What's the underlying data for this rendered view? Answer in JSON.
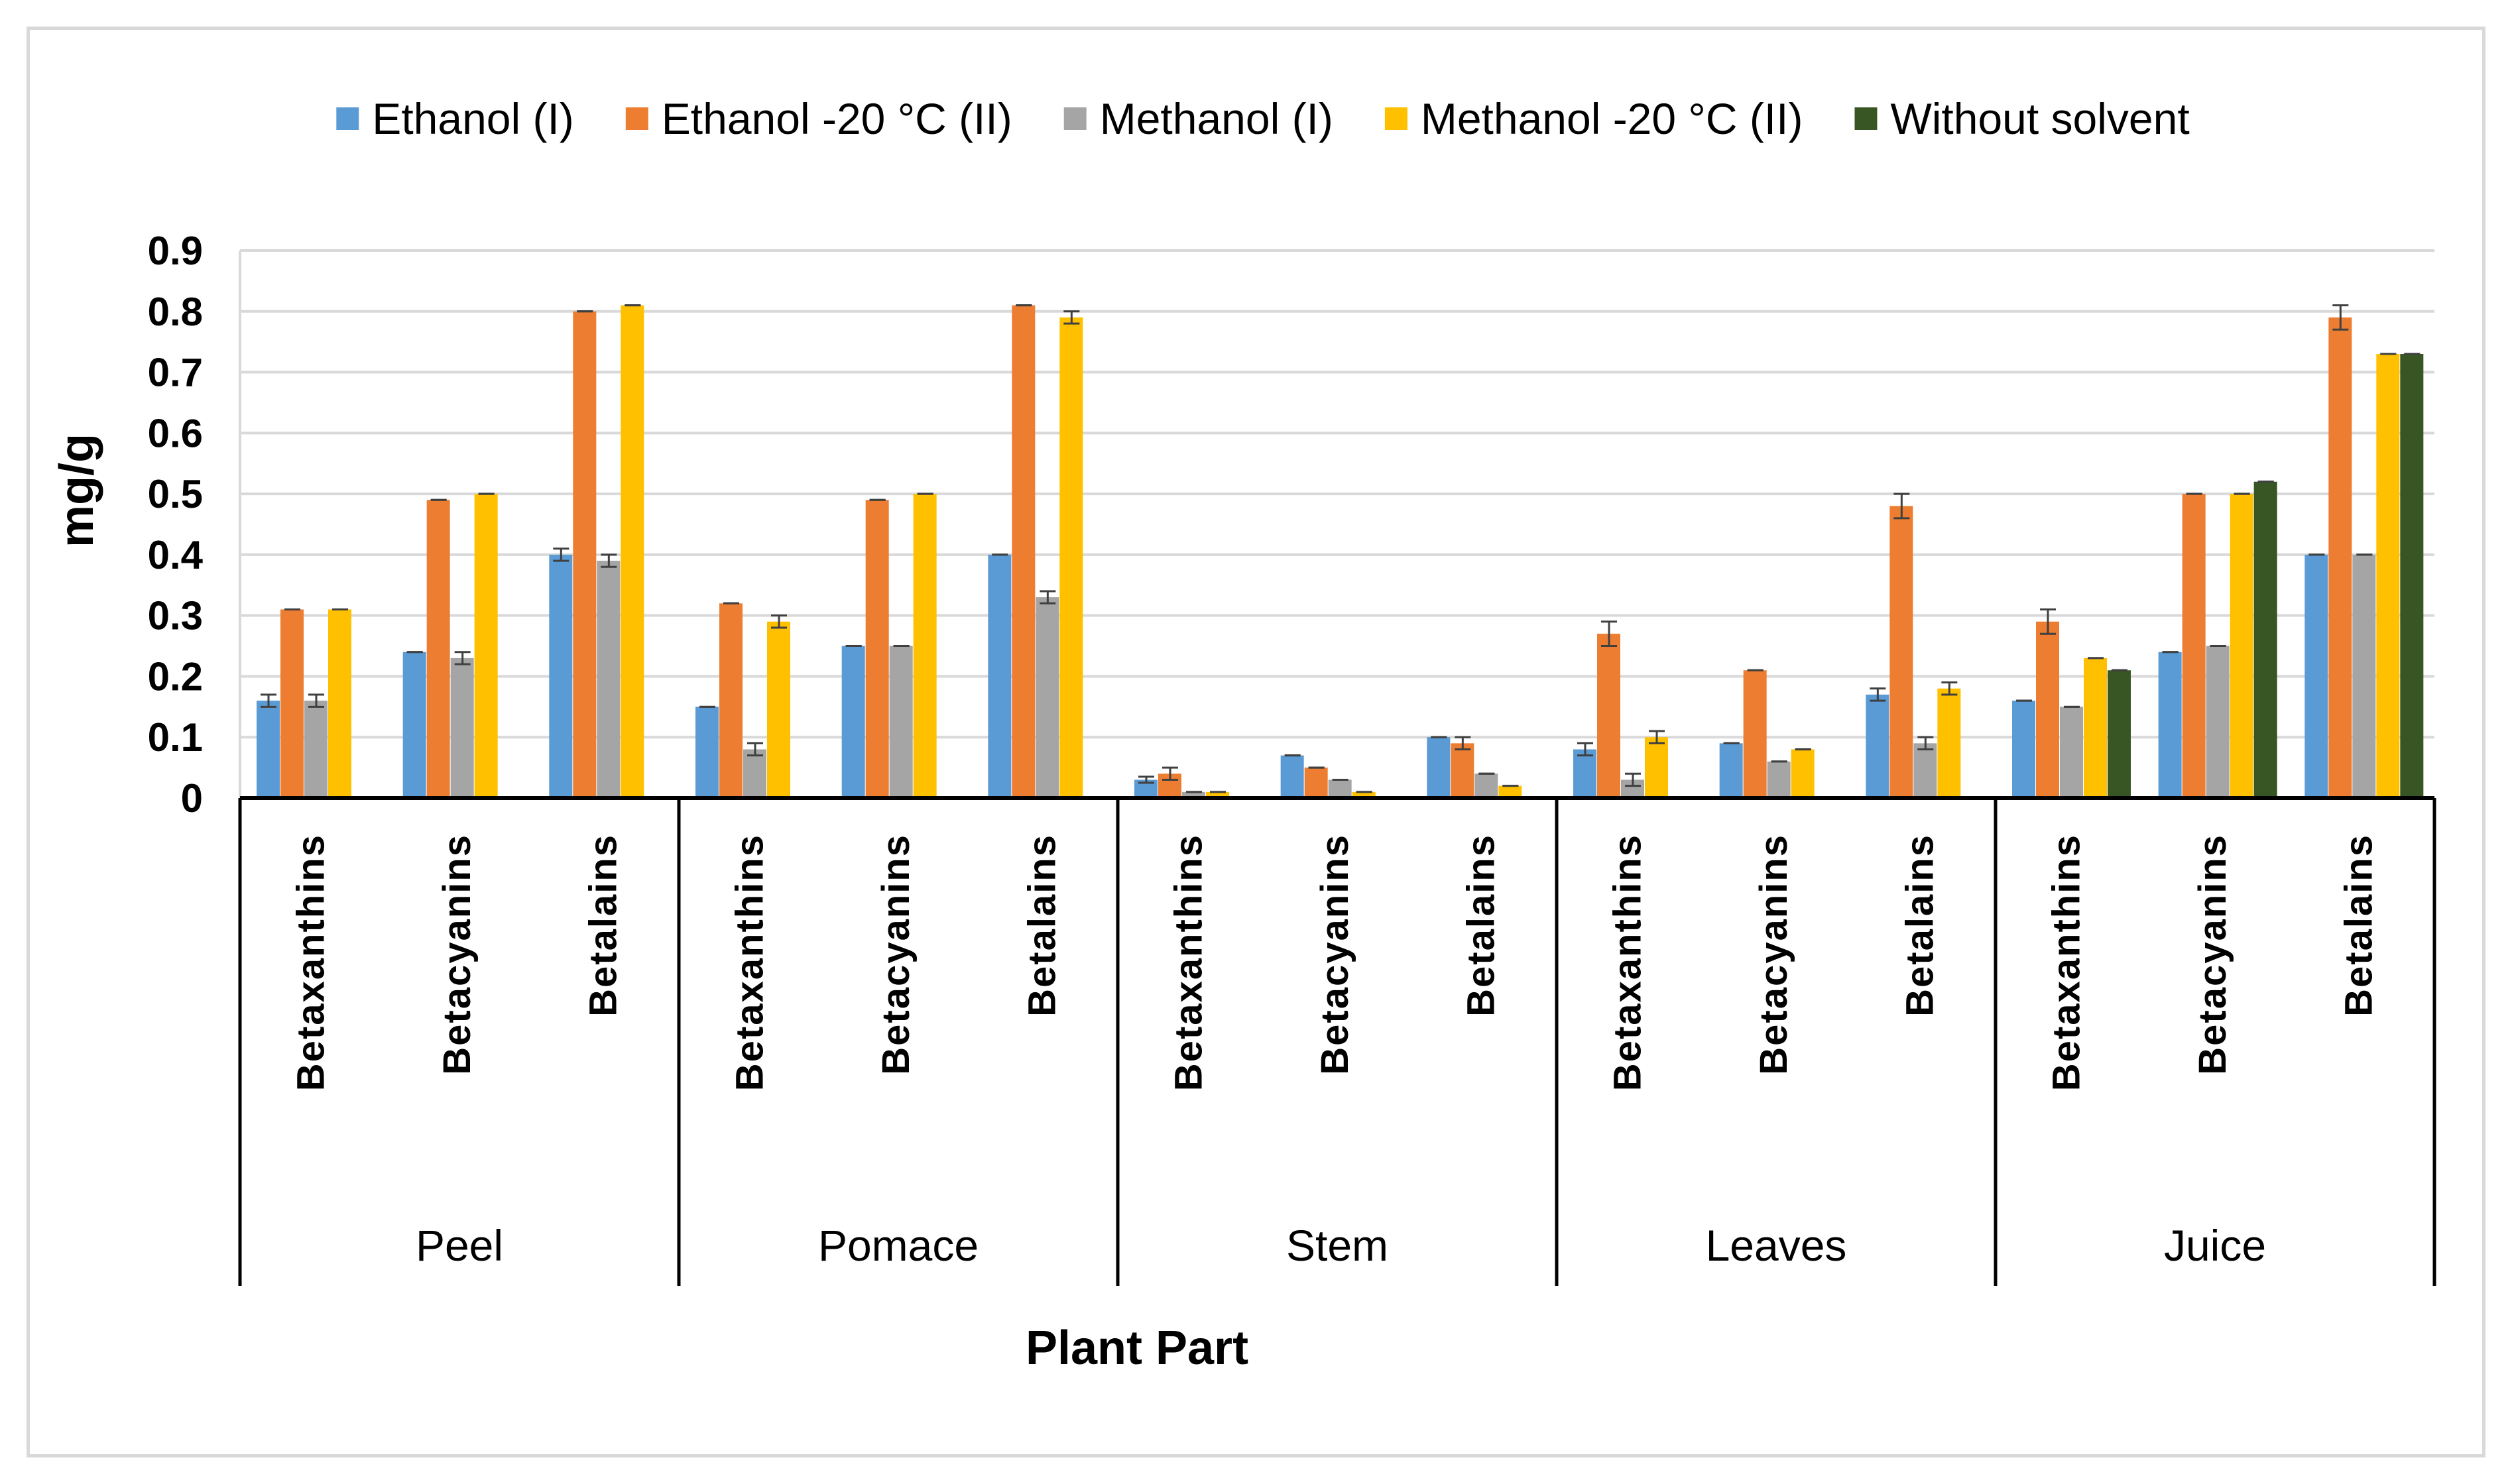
{
  "chart_data": {
    "type": "bar",
    "title": "",
    "xlabel": "Plant Part",
    "ylabel": "mg/g",
    "ylim": [
      0,
      0.9
    ],
    "yticks": [
      "0",
      "0.1",
      "0.2",
      "0.3",
      "0.4",
      "0.5",
      "0.6",
      "0.7",
      "0.8",
      "0.9"
    ],
    "grid": true,
    "legend_position": "top",
    "groups": [
      "Peel",
      "Pomace",
      "Stem",
      "Leaves",
      "Juice"
    ],
    "subcategories": [
      "Betaxanthins",
      "Betacyanins",
      "Betalains"
    ],
    "series": [
      {
        "name": "Ethanol (I)",
        "color": "#5b9bd5",
        "values": [
          0.16,
          0.24,
          0.4,
          0.15,
          0.25,
          0.4,
          0.03,
          0.07,
          0.1,
          0.08,
          0.09,
          0.17,
          0.16,
          0.24,
          0.4
        ],
        "errors": [
          0.01,
          0,
          0.01,
          0,
          0,
          0,
          0.005,
          0,
          0,
          0.01,
          0,
          0.01,
          0,
          0,
          0
        ]
      },
      {
        "name": "Ethanol -20 °C (II)",
        "color": "#ed7d31",
        "values": [
          0.31,
          0.49,
          0.8,
          0.32,
          0.49,
          0.81,
          0.04,
          0.05,
          0.09,
          0.27,
          0.21,
          0.48,
          0.29,
          0.5,
          0.79
        ],
        "errors": [
          0,
          0,
          0,
          0,
          0,
          0,
          0.01,
          0,
          0.01,
          0.02,
          0,
          0.02,
          0.02,
          0,
          0.02
        ]
      },
      {
        "name": "Methanol (I)",
        "color": "#a5a5a5",
        "values": [
          0.16,
          0.23,
          0.39,
          0.08,
          0.25,
          0.33,
          0.01,
          0.03,
          0.04,
          0.03,
          0.06,
          0.09,
          0.15,
          0.25,
          0.4
        ],
        "errors": [
          0.01,
          0.01,
          0.01,
          0.01,
          0,
          0.01,
          0,
          0,
          0,
          0.01,
          0,
          0.01,
          0,
          0,
          0
        ]
      },
      {
        "name": "Methanol -20 °C (II)",
        "color": "#ffc000",
        "values": [
          0.31,
          0.5,
          0.81,
          0.29,
          0.5,
          0.79,
          0.01,
          0.01,
          0.02,
          0.1,
          0.08,
          0.18,
          0.23,
          0.5,
          0.73
        ],
        "errors": [
          0,
          0,
          0,
          0.01,
          0,
          0.01,
          0,
          0,
          0,
          0.01,
          0,
          0.01,
          0,
          0,
          0
        ]
      },
      {
        "name": "Without solvent",
        "color": "#375623",
        "values": [
          null,
          null,
          null,
          null,
          null,
          null,
          null,
          null,
          null,
          null,
          null,
          null,
          0.21,
          0.52,
          0.73
        ],
        "errors": [
          null,
          null,
          null,
          null,
          null,
          null,
          null,
          null,
          null,
          null,
          null,
          null,
          0,
          0,
          0
        ]
      }
    ]
  }
}
